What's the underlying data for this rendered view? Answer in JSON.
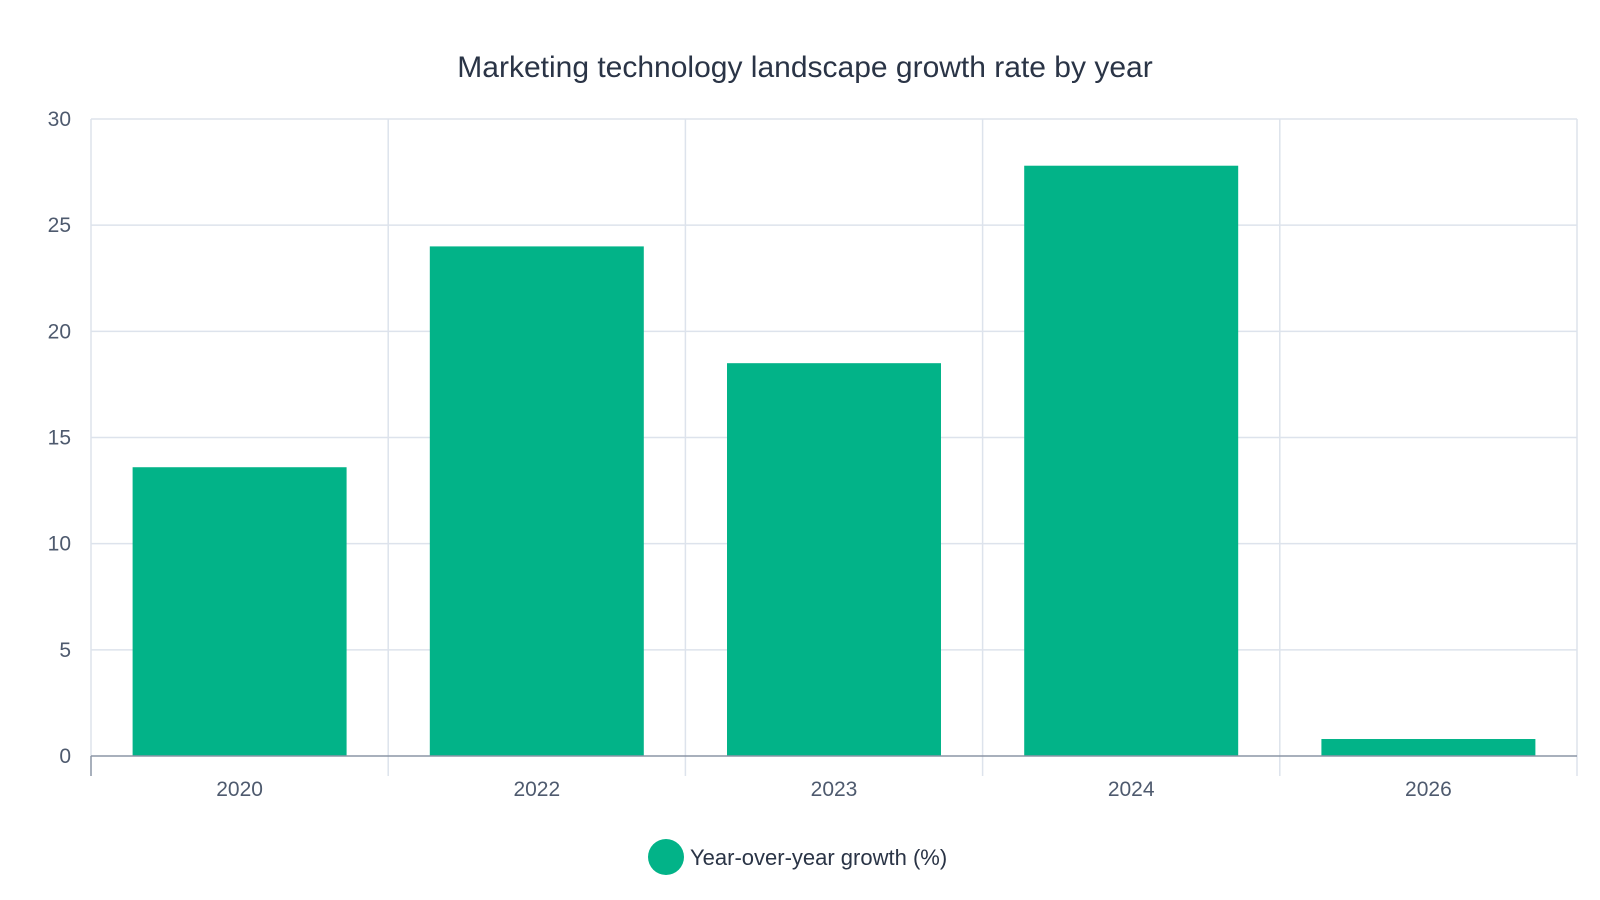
{
  "chart_data": {
    "type": "bar",
    "title": "Marketing technology landscape growth rate by year",
    "xlabel": "",
    "ylabel": "",
    "categories": [
      "2020",
      "2022",
      "2023",
      "2024",
      "2026"
    ],
    "series": [
      {
        "name": "Year-over-year growth (%)",
        "values": [
          13.6,
          24.0,
          18.5,
          27.8,
          0.8
        ],
        "color": "#02b388"
      }
    ],
    "ylim": [
      0,
      30
    ],
    "yticks": [
      "0",
      "5",
      "10",
      "15",
      "20",
      "25",
      "30"
    ],
    "grid": true,
    "legend": "bottom-center"
  },
  "colors": {
    "grid": "#dde3ec",
    "axis": "#8b95a5",
    "text": "#2a3446"
  }
}
